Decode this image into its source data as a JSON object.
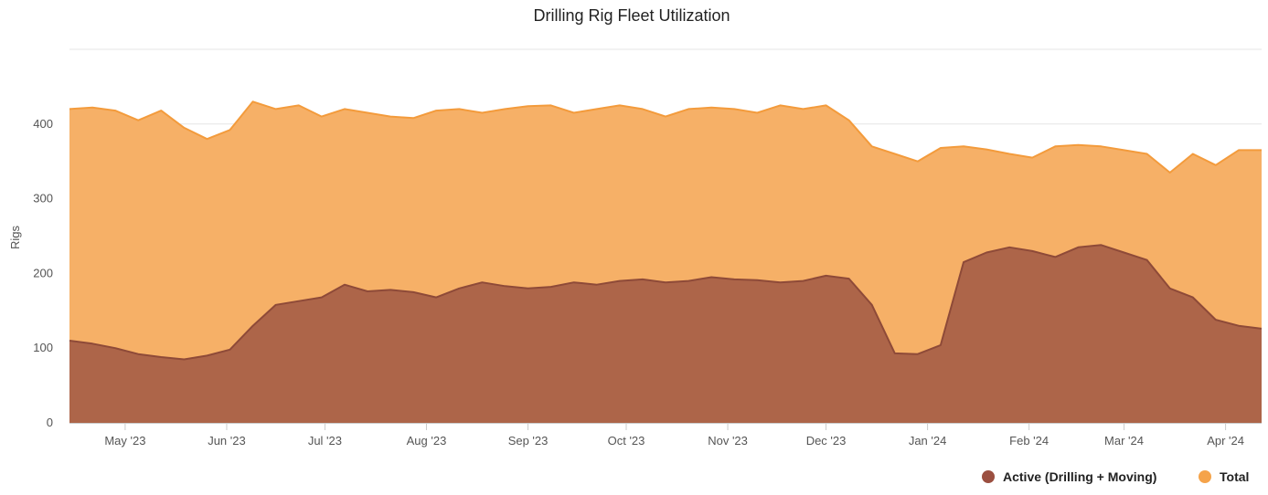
{
  "chart_data": {
    "type": "area",
    "title": "Drilling Rig Fleet Utilization",
    "xlabel": "",
    "ylabel": "Rigs",
    "ylim": [
      0,
      500
    ],
    "yticks": [
      0,
      100,
      200,
      300,
      400
    ],
    "xlim": [
      "2023-04-14",
      "2024-04-12"
    ],
    "xticks": [
      {
        "date": "2023-05-01",
        "label": "May '23"
      },
      {
        "date": "2023-06-01",
        "label": "Jun '23"
      },
      {
        "date": "2023-07-01",
        "label": "Jul '23"
      },
      {
        "date": "2023-08-01",
        "label": "Aug '23"
      },
      {
        "date": "2023-09-01",
        "label": "Sep '23"
      },
      {
        "date": "2023-10-01",
        "label": "Oct '23"
      },
      {
        "date": "2023-11-01",
        "label": "Nov '23"
      },
      {
        "date": "2023-12-01",
        "label": "Dec '23"
      },
      {
        "date": "2024-01-01",
        "label": "Jan '24"
      },
      {
        "date": "2024-02-01",
        "label": "Feb '24"
      },
      {
        "date": "2024-03-01",
        "label": "Mar '24"
      },
      {
        "date": "2024-04-01",
        "label": "Apr '24"
      }
    ],
    "grid": true,
    "legend_position": "bottom-right",
    "stacking": "overlap",
    "x": [
      "2023-04-14",
      "2023-04-21",
      "2023-04-28",
      "2023-05-05",
      "2023-05-12",
      "2023-05-19",
      "2023-05-26",
      "2023-06-02",
      "2023-06-09",
      "2023-06-16",
      "2023-06-23",
      "2023-06-30",
      "2023-07-07",
      "2023-07-14",
      "2023-07-21",
      "2023-07-28",
      "2023-08-04",
      "2023-08-11",
      "2023-08-18",
      "2023-08-25",
      "2023-09-01",
      "2023-09-08",
      "2023-09-15",
      "2023-09-22",
      "2023-09-29",
      "2023-10-06",
      "2023-10-13",
      "2023-10-20",
      "2023-10-27",
      "2023-11-03",
      "2023-11-10",
      "2023-11-17",
      "2023-11-24",
      "2023-12-01",
      "2023-12-08",
      "2023-12-15",
      "2023-12-22",
      "2023-12-29",
      "2024-01-05",
      "2024-01-12",
      "2024-01-19",
      "2024-01-26",
      "2024-02-02",
      "2024-02-09",
      "2024-02-16",
      "2024-02-23",
      "2024-03-01",
      "2024-03-08",
      "2024-03-15",
      "2024-03-22",
      "2024-03-29",
      "2024-04-05",
      "2024-04-12"
    ],
    "series": [
      {
        "name": "Active (Drilling + Moving)",
        "color": "#b0644b",
        "values": [
          110,
          106,
          100,
          92,
          88,
          85,
          90,
          98,
          130,
          158,
          163,
          168,
          185,
          176,
          178,
          175,
          168,
          180,
          188,
          183,
          180,
          182,
          188,
          185,
          190,
          192,
          188,
          190,
          195,
          192,
          191,
          188,
          190,
          197,
          193,
          158,
          93,
          92,
          104,
          215,
          228,
          235,
          230,
          222,
          235,
          238,
          228,
          218,
          180,
          168,
          138,
          130,
          126
        ]
      },
      {
        "name": "Total",
        "color": "#f5a34a",
        "values": [
          420,
          422,
          418,
          405,
          418,
          395,
          380,
          392,
          430,
          420,
          425,
          410,
          420,
          415,
          410,
          408,
          418,
          420,
          415,
          420,
          424,
          425,
          415,
          420,
          425,
          420,
          410,
          420,
          422,
          420,
          415,
          425,
          420,
          425,
          405,
          370,
          360,
          350,
          368,
          370,
          366,
          360,
          355,
          370,
          372,
          370,
          365,
          360,
          335,
          360,
          345,
          365,
          365
        ]
      }
    ]
  }
}
